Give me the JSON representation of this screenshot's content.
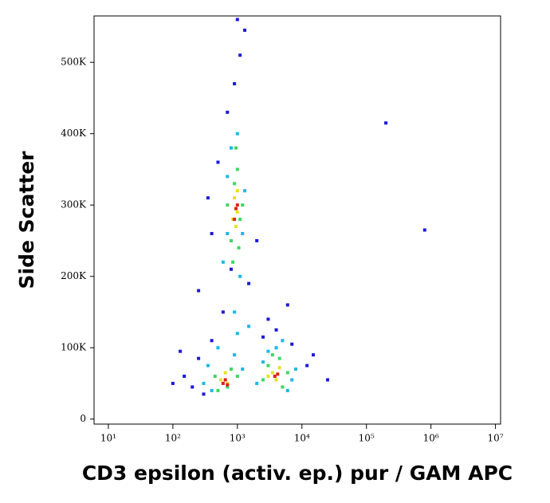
{
  "chart_data": {
    "type": "scatter",
    "x_label": "CD3 epsilon (activ. ep.) pur / GAM APC",
    "y_label": "Side Scatter",
    "x_scale": "log",
    "xlim": [
      6,
      12000000
    ],
    "xticks": [
      {
        "value": 10,
        "label": "10¹"
      },
      {
        "value": 100,
        "label": "10²"
      },
      {
        "value": 1000,
        "label": "10³"
      },
      {
        "value": 10000,
        "label": "10⁴"
      },
      {
        "value": 100000,
        "label": "10⁵"
      },
      {
        "value": 1000000,
        "label": "10⁶"
      },
      {
        "value": 10000000,
        "label": "10⁷"
      }
    ],
    "ylim": [
      -7000,
      565000
    ],
    "yticks": [
      0,
      {
        "value": 100000,
        "label": "100K"
      },
      {
        "value": 200000,
        "label": "200K"
      },
      {
        "value": 300000,
        "label": "300K"
      },
      {
        "value": 400000,
        "label": "400K"
      },
      {
        "value": 500000,
        "label": "500K"
      }
    ],
    "series": [
      {
        "color": "#1a1ad8",
        "x": [
          150,
          200,
          250,
          300,
          400,
          130,
          600,
          800,
          1500,
          2500,
          4000,
          7000,
          12000,
          25000,
          500,
          700,
          1100,
          1300,
          900,
          400,
          350,
          2000,
          3000,
          15000,
          200000,
          800000,
          100,
          1000,
          6000,
          250
        ],
        "values": [
          60000,
          45000,
          85000,
          35000,
          110000,
          95000,
          150000,
          210000,
          190000,
          115000,
          125000,
          105000,
          75000,
          55000,
          360000,
          430000,
          510000,
          545000,
          470000,
          260000,
          310000,
          250000,
          140000,
          90000,
          415000,
          265000,
          50000,
          560000,
          160000,
          180000
        ]
      },
      {
        "color": "#18b8e8",
        "x": [
          300,
          350,
          400,
          900,
          1200,
          2000,
          2500,
          7000,
          8000,
          6000,
          600,
          700,
          1200,
          1300,
          700,
          1000,
          800,
          1100,
          900,
          1000,
          4000,
          5000,
          3000,
          500,
          1500
        ],
        "values": [
          50000,
          75000,
          40000,
          90000,
          70000,
          50000,
          80000,
          55000,
          70000,
          40000,
          220000,
          260000,
          260000,
          320000,
          340000,
          400000,
          380000,
          200000,
          150000,
          120000,
          100000,
          110000,
          95000,
          100000,
          130000
        ]
      },
      {
        "color": "#3ed860",
        "x": [
          450,
          500,
          800,
          700,
          1000,
          3000,
          2500,
          5000,
          6000,
          3500,
          800,
          1100,
          1000,
          900,
          1200,
          850,
          950,
          700,
          1050,
          4500
        ],
        "values": [
          60000,
          40000,
          70000,
          45000,
          60000,
          75000,
          55000,
          45000,
          65000,
          90000,
          250000,
          280000,
          350000,
          330000,
          300000,
          220000,
          380000,
          300000,
          240000,
          85000
        ]
      },
      {
        "color": "#e8e020",
        "x": [
          550,
          650,
          700,
          3500,
          4000,
          4500,
          3000,
          950,
          900,
          1000,
          850,
          1000
        ],
        "values": [
          55000,
          65000,
          50000,
          65000,
          55000,
          72000,
          60000,
          270000,
          310000,
          290000,
          280000,
          320000
        ]
      },
      {
        "color": "#e02010",
        "x": [
          600,
          650,
          700,
          3800,
          4200,
          950,
          900,
          1000
        ],
        "values": [
          50000,
          55000,
          48000,
          60000,
          63000,
          295000,
          280000,
          300000
        ]
      }
    ]
  }
}
